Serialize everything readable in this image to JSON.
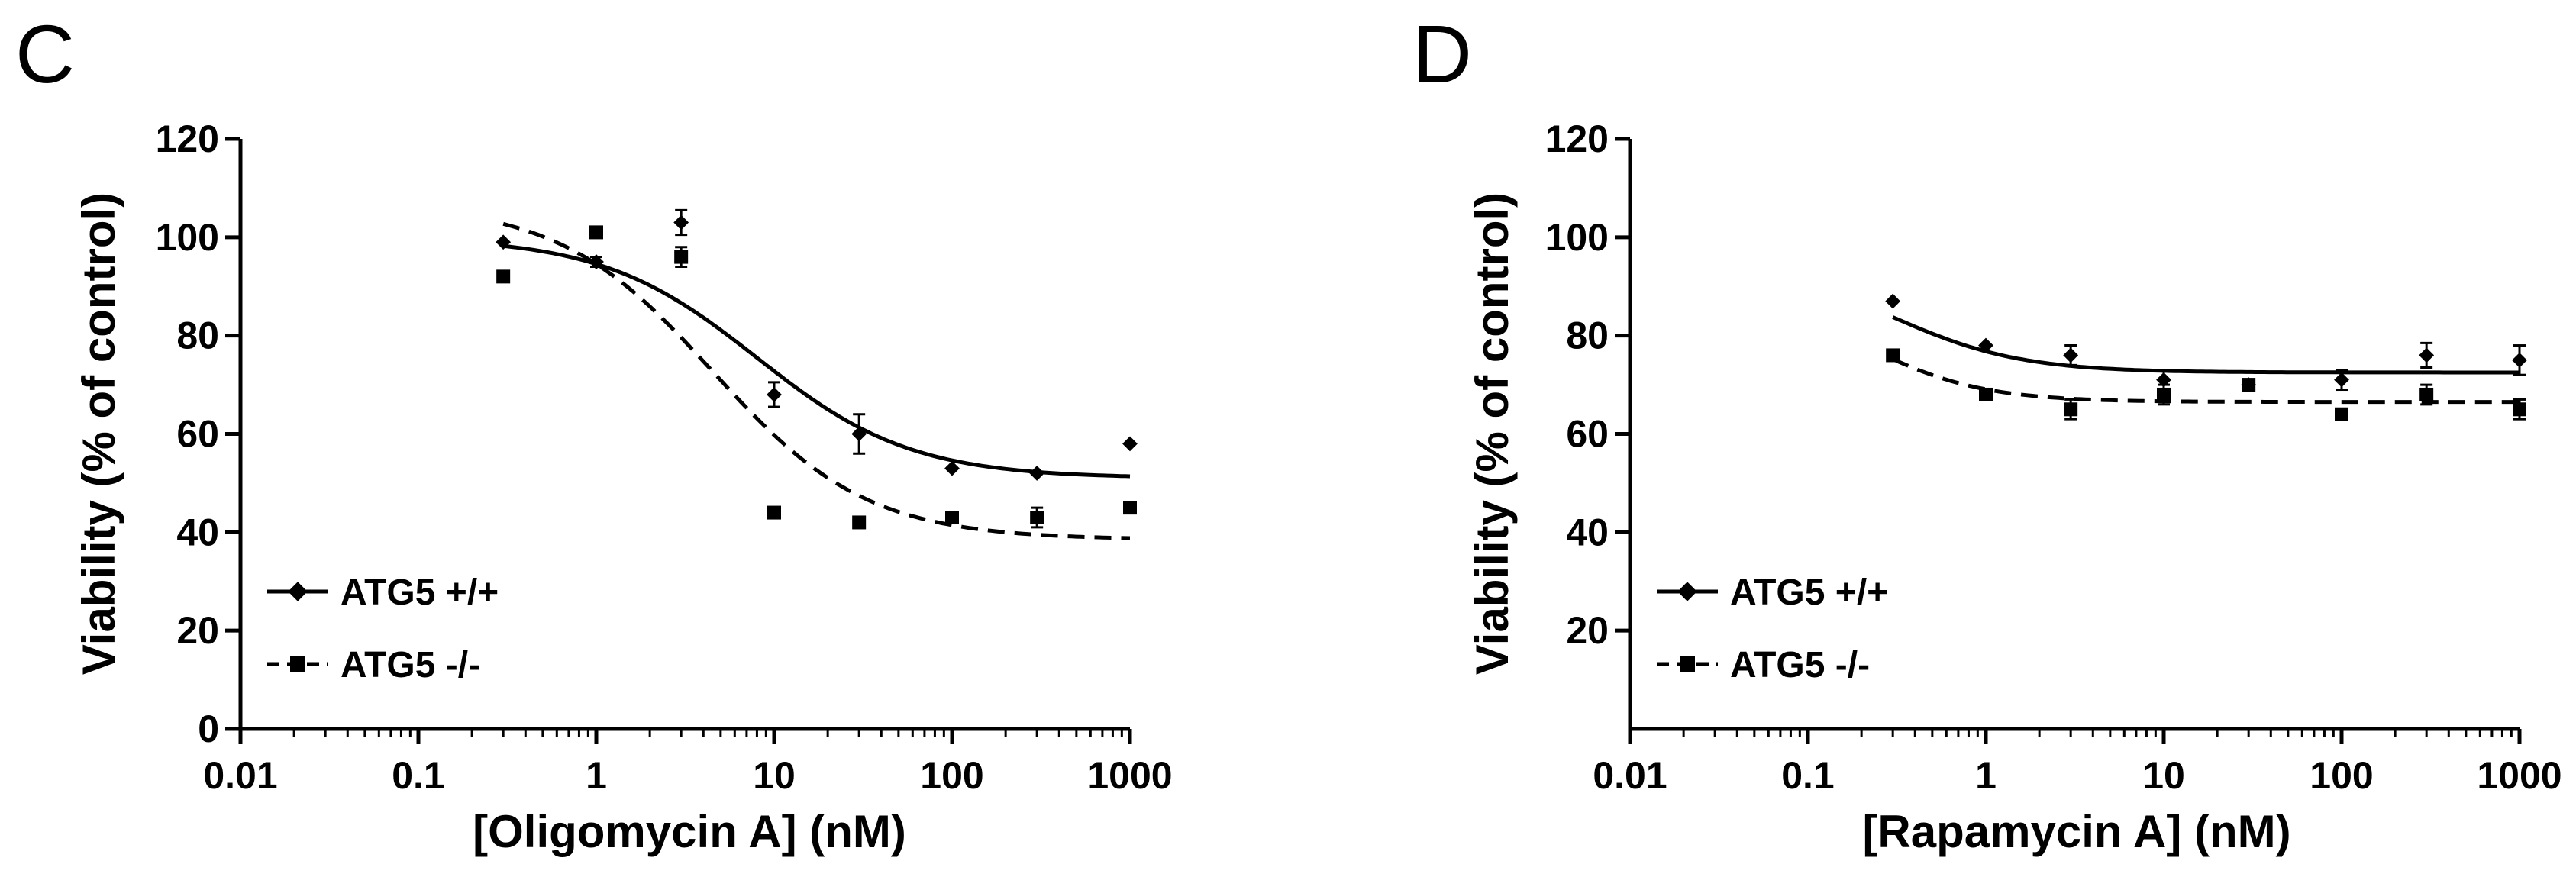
{
  "chart_data": [
    {
      "panel": "C",
      "type": "scatter",
      "xscale": "log",
      "xlabel": "[Oligomycin A] (nM)",
      "ylabel": "Viability (% of control)",
      "xlim": [
        0.01,
        1000
      ],
      "ylim": [
        0,
        120
      ],
      "xticks": [
        0.01,
        0.1,
        1,
        10,
        100,
        1000
      ],
      "xtick_labels": [
        "0.01",
        "0.1",
        "1",
        "10",
        "100",
        "1000"
      ],
      "yticks": [
        0,
        20,
        40,
        60,
        80,
        100,
        120
      ],
      "ytick_labels": [
        "0",
        "20",
        "40",
        "60",
        "80",
        "100",
        "120"
      ],
      "legend_position": "bottom-left",
      "series": [
        {
          "name": "ATG5 +/+",
          "marker": "diamond",
          "line": "solid",
          "x": [
            0.3,
            1,
            3,
            10,
            30,
            100,
            300,
            1000
          ],
          "y": [
            99,
            95,
            103,
            68,
            60,
            53,
            52,
            58
          ],
          "err": [
            0,
            1,
            2.5,
            2.5,
            4,
            0,
            0,
            0
          ],
          "fit": {
            "top": 100,
            "bottom": 51,
            "ec50": 8,
            "hill": 1
          }
        },
        {
          "name": "ATG5 -/-",
          "marker": "square",
          "line": "dashed",
          "x": [
            0.3,
            1,
            3,
            10,
            30,
            100,
            300,
            1000
          ],
          "y": [
            92,
            101,
            96,
            44,
            42,
            43,
            43,
            45
          ],
          "err": [
            0,
            0,
            2,
            0,
            0,
            0,
            2,
            0
          ],
          "fit": {
            "top": 107,
            "bottom": 38.5,
            "ec50": 4.5,
            "hill": 1
          }
        }
      ]
    },
    {
      "panel": "D",
      "type": "scatter",
      "xscale": "log",
      "xlabel": "[Rapamycin A] (nM)",
      "ylabel": "Viability (% of control)",
      "xlim": [
        0.01,
        1000
      ],
      "ylim": [
        0,
        120
      ],
      "xticks": [
        0.01,
        0.1,
        1,
        10,
        100,
        1000
      ],
      "xtick_labels": [
        "0.01",
        "0.1",
        "1",
        "10",
        "100",
        "1000"
      ],
      "yticks": [
        20,
        40,
        60,
        80,
        100,
        120
      ],
      "ytick_labels": [
        "20",
        "40",
        "60",
        "80",
        "100",
        "120"
      ],
      "legend_position": "bottom-left",
      "series": [
        {
          "name": "ATG5 +/+",
          "marker": "diamond",
          "line": "solid",
          "x": [
            0.3,
            1,
            3,
            10,
            30,
            100,
            300,
            1000
          ],
          "y": [
            87,
            78,
            76,
            71,
            70,
            71,
            76,
            75
          ],
          "err": [
            0,
            0,
            2,
            2,
            0,
            2,
            2.5,
            3
          ],
          "fit": {
            "top": 95,
            "bottom": 72.5,
            "ec50": 0.3,
            "hill": 1.2
          }
        },
        {
          "name": "ATG5 -/-",
          "marker": "square",
          "line": "dashed",
          "x": [
            0.3,
            1,
            3,
            10,
            30,
            100,
            300,
            1000
          ],
          "y": [
            76,
            68,
            65,
            68,
            70,
            64,
            68,
            65
          ],
          "err": [
            0,
            0,
            2,
            2,
            0,
            0,
            2,
            2
          ],
          "fit": {
            "top": 90,
            "bottom": 66.5,
            "ec50": 0.2,
            "hill": 1.3
          }
        }
      ]
    }
  ]
}
